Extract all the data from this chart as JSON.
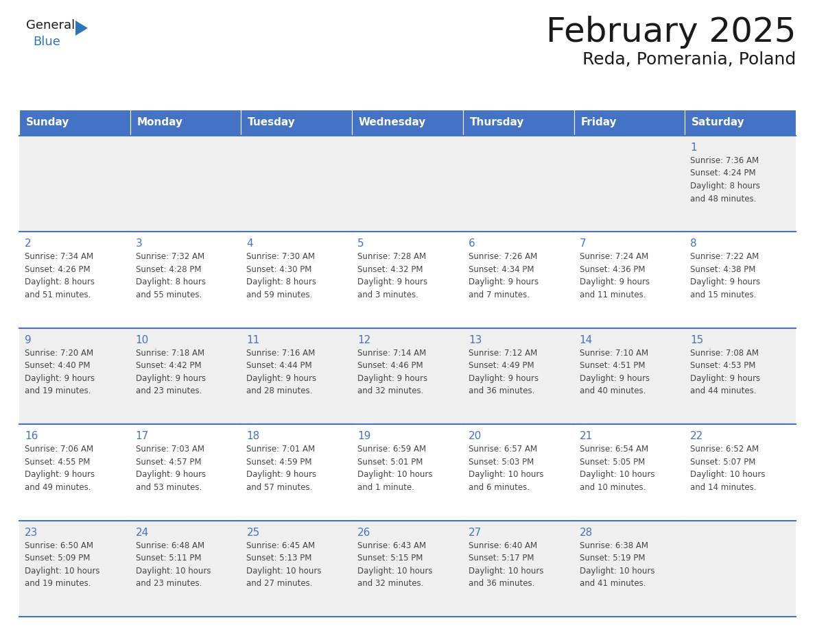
{
  "title": "February 2025",
  "subtitle": "Reda, Pomerania, Poland",
  "header_bg": "#4472C4",
  "header_text_color": "#FFFFFF",
  "cell_bg_light": "#EFEFEF",
  "cell_bg_white": "#FFFFFF",
  "day_number_color": "#4472C4",
  "text_color": "#444444",
  "border_color": "#4472C4",
  "days_of_week": [
    "Sunday",
    "Monday",
    "Tuesday",
    "Wednesday",
    "Thursday",
    "Friday",
    "Saturday"
  ],
  "weeks": [
    [
      {
        "day": "",
        "info": ""
      },
      {
        "day": "",
        "info": ""
      },
      {
        "day": "",
        "info": ""
      },
      {
        "day": "",
        "info": ""
      },
      {
        "day": "",
        "info": ""
      },
      {
        "day": "",
        "info": ""
      },
      {
        "day": "1",
        "info": "Sunrise: 7:36 AM\nSunset: 4:24 PM\nDaylight: 8 hours\nand 48 minutes."
      }
    ],
    [
      {
        "day": "2",
        "info": "Sunrise: 7:34 AM\nSunset: 4:26 PM\nDaylight: 8 hours\nand 51 minutes."
      },
      {
        "day": "3",
        "info": "Sunrise: 7:32 AM\nSunset: 4:28 PM\nDaylight: 8 hours\nand 55 minutes."
      },
      {
        "day": "4",
        "info": "Sunrise: 7:30 AM\nSunset: 4:30 PM\nDaylight: 8 hours\nand 59 minutes."
      },
      {
        "day": "5",
        "info": "Sunrise: 7:28 AM\nSunset: 4:32 PM\nDaylight: 9 hours\nand 3 minutes."
      },
      {
        "day": "6",
        "info": "Sunrise: 7:26 AM\nSunset: 4:34 PM\nDaylight: 9 hours\nand 7 minutes."
      },
      {
        "day": "7",
        "info": "Sunrise: 7:24 AM\nSunset: 4:36 PM\nDaylight: 9 hours\nand 11 minutes."
      },
      {
        "day": "8",
        "info": "Sunrise: 7:22 AM\nSunset: 4:38 PM\nDaylight: 9 hours\nand 15 minutes."
      }
    ],
    [
      {
        "day": "9",
        "info": "Sunrise: 7:20 AM\nSunset: 4:40 PM\nDaylight: 9 hours\nand 19 minutes."
      },
      {
        "day": "10",
        "info": "Sunrise: 7:18 AM\nSunset: 4:42 PM\nDaylight: 9 hours\nand 23 minutes."
      },
      {
        "day": "11",
        "info": "Sunrise: 7:16 AM\nSunset: 4:44 PM\nDaylight: 9 hours\nand 28 minutes."
      },
      {
        "day": "12",
        "info": "Sunrise: 7:14 AM\nSunset: 4:46 PM\nDaylight: 9 hours\nand 32 minutes."
      },
      {
        "day": "13",
        "info": "Sunrise: 7:12 AM\nSunset: 4:49 PM\nDaylight: 9 hours\nand 36 minutes."
      },
      {
        "day": "14",
        "info": "Sunrise: 7:10 AM\nSunset: 4:51 PM\nDaylight: 9 hours\nand 40 minutes."
      },
      {
        "day": "15",
        "info": "Sunrise: 7:08 AM\nSunset: 4:53 PM\nDaylight: 9 hours\nand 44 minutes."
      }
    ],
    [
      {
        "day": "16",
        "info": "Sunrise: 7:06 AM\nSunset: 4:55 PM\nDaylight: 9 hours\nand 49 minutes."
      },
      {
        "day": "17",
        "info": "Sunrise: 7:03 AM\nSunset: 4:57 PM\nDaylight: 9 hours\nand 53 minutes."
      },
      {
        "day": "18",
        "info": "Sunrise: 7:01 AM\nSunset: 4:59 PM\nDaylight: 9 hours\nand 57 minutes."
      },
      {
        "day": "19",
        "info": "Sunrise: 6:59 AM\nSunset: 5:01 PM\nDaylight: 10 hours\nand 1 minute."
      },
      {
        "day": "20",
        "info": "Sunrise: 6:57 AM\nSunset: 5:03 PM\nDaylight: 10 hours\nand 6 minutes."
      },
      {
        "day": "21",
        "info": "Sunrise: 6:54 AM\nSunset: 5:05 PM\nDaylight: 10 hours\nand 10 minutes."
      },
      {
        "day": "22",
        "info": "Sunrise: 6:52 AM\nSunset: 5:07 PM\nDaylight: 10 hours\nand 14 minutes."
      }
    ],
    [
      {
        "day": "23",
        "info": "Sunrise: 6:50 AM\nSunset: 5:09 PM\nDaylight: 10 hours\nand 19 minutes."
      },
      {
        "day": "24",
        "info": "Sunrise: 6:48 AM\nSunset: 5:11 PM\nDaylight: 10 hours\nand 23 minutes."
      },
      {
        "day": "25",
        "info": "Sunrise: 6:45 AM\nSunset: 5:13 PM\nDaylight: 10 hours\nand 27 minutes."
      },
      {
        "day": "26",
        "info": "Sunrise: 6:43 AM\nSunset: 5:15 PM\nDaylight: 10 hours\nand 32 minutes."
      },
      {
        "day": "27",
        "info": "Sunrise: 6:40 AM\nSunset: 5:17 PM\nDaylight: 10 hours\nand 36 minutes."
      },
      {
        "day": "28",
        "info": "Sunrise: 6:38 AM\nSunset: 5:19 PM\nDaylight: 10 hours\nand 41 minutes."
      },
      {
        "day": "",
        "info": ""
      }
    ]
  ],
  "logo_general_color": "#1a1a1a",
  "logo_blue_color": "#2E75B6",
  "logo_triangle_color": "#2E75B6",
  "title_color": "#1a1a1a",
  "subtitle_color": "#1a1a1a"
}
